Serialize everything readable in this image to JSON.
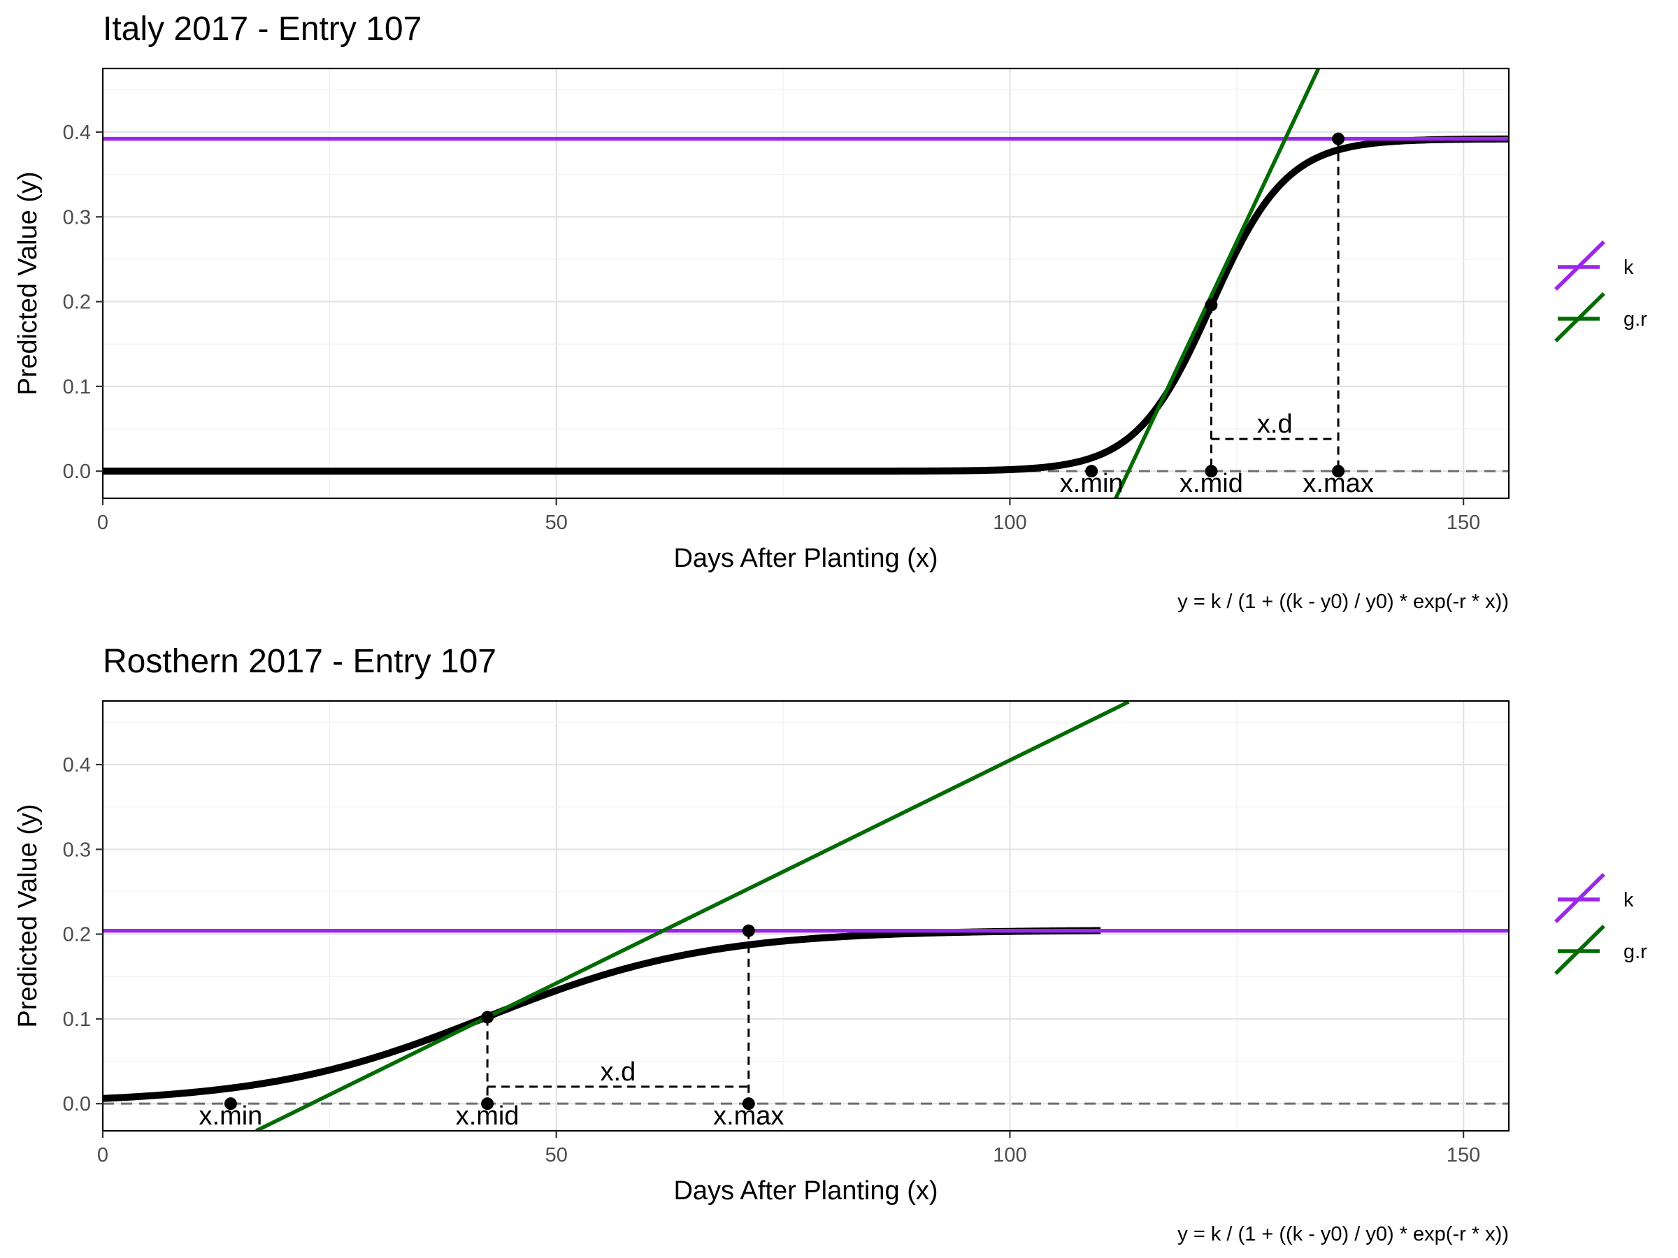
{
  "chart_data": [
    {
      "type": "line",
      "title": "Italy 2017 - Entry 107",
      "xlabel": "Days After Planting (x)",
      "ylabel": "Predicted Value (y)",
      "caption": "y = k / (1 + ((k - y0) / y0) * exp(-r * x))",
      "xlim": [
        0,
        155
      ],
      "ylim": [
        -0.032,
        0.475
      ],
      "x_ticks": [
        "0",
        "50",
        "100",
        "150"
      ],
      "y_ticks": [
        "0.0",
        "0.1",
        "0.2",
        "0.3",
        "0.4"
      ],
      "grid": true,
      "legend_position": "right",
      "legend": [
        {
          "label": "k",
          "color": "#9b27e8"
        },
        {
          "label": "g.r",
          "color": "#036b03"
        }
      ],
      "model": {
        "k": 0.392,
        "x_mid": 122.2,
        "r": 0.241,
        "curve_x_range": [
          0,
          155
        ]
      },
      "k_line": {
        "y": 0.392
      },
      "growth_rate_line": {
        "points": [
          [
            111.6,
            -0.0335
          ],
          [
            134.0,
            0.4746
          ]
        ]
      },
      "points": [
        {
          "label": "x.min",
          "x": 109.0,
          "y": 0.0
        },
        {
          "label": "x.mid",
          "x": 122.2,
          "y": 0.196
        },
        {
          "label": "x.max",
          "x": 136.2,
          "y": 0.392
        }
      ],
      "x_mid_marker": {
        "x": 122.2,
        "y": 0.0
      },
      "x_max_marker": {
        "x": 136.2,
        "y": 0.0
      },
      "x_d_bracket": {
        "label": "x.d",
        "x_from": 122.2,
        "x_to": 136.2,
        "y": 0.038
      },
      "baseline_y": 0.0
    },
    {
      "type": "line",
      "title": "Rosthern 2017 - Entry 107",
      "xlabel": "Days After Planting (x)",
      "ylabel": "Predicted Value (y)",
      "caption": "y = k / (1 + ((k - y0) / y0) * exp(-r * x))",
      "xlim": [
        0,
        155
      ],
      "ylim": [
        -0.032,
        0.475
      ],
      "x_ticks": [
        "0",
        "50",
        "100",
        "150"
      ],
      "y_ticks": [
        "0.0",
        "0.1",
        "0.2",
        "0.3",
        "0.4"
      ],
      "grid": true,
      "legend_position": "right",
      "legend": [
        {
          "label": "k",
          "color": "#9b27e8"
        },
        {
          "label": "g.r",
          "color": "#036b03"
        }
      ],
      "model": {
        "k": 0.205,
        "x_mid": 42.4,
        "r": 0.082,
        "curve_x_range": [
          0,
          110
        ]
      },
      "k_line": {
        "y": 0.204
      },
      "growth_rate_line": {
        "points": [
          [
            16.9,
            -0.032
          ],
          [
            113.1,
            0.474
          ]
        ]
      },
      "points": [
        {
          "label": "x.min",
          "x": 14.1,
          "y": 0.0
        },
        {
          "label": "x.mid",
          "x": 42.4,
          "y": 0.102
        },
        {
          "label": "x.max",
          "x": 71.2,
          "y": 0.204
        }
      ],
      "x_mid_marker": {
        "x": 42.4,
        "y": 0.0
      },
      "x_max_marker": {
        "x": 71.2,
        "y": 0.0
      },
      "x_d_bracket": {
        "label": "x.d",
        "x_from": 42.4,
        "x_to": 71.2,
        "y": 0.02
      },
      "baseline_y": 0.0
    }
  ]
}
